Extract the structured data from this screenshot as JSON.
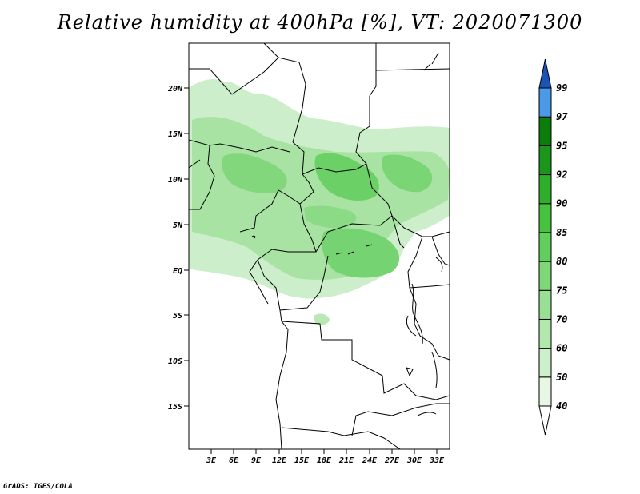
{
  "title": "Relative humidity at 400hPa [%], VT: 2020071300",
  "credit": "GrADS: IGES/COLA",
  "map": {
    "lat_ticks": [
      "20N",
      "15N",
      "10N",
      "5N",
      "EQ",
      "5S",
      "10S",
      "15S"
    ],
    "lon_ticks": [
      "3E",
      "6E",
      "9E",
      "12E",
      "15E",
      "18E",
      "21E",
      "24E",
      "27E",
      "30E",
      "33E"
    ]
  },
  "colorbar": {
    "levels": [
      "40",
      "50",
      "60",
      "70",
      "75",
      "80",
      "85",
      "90",
      "92",
      "95",
      "97",
      "99"
    ],
    "colors": [
      "#ffffff",
      "#e6f8e4",
      "#ccf0c9",
      "#b2e8ae",
      "#98e093",
      "#7ed878",
      "#62ce5c",
      "#46c23f",
      "#2fae2a",
      "#1a961a",
      "#0b7d0b",
      "#4a9ae8",
      "#2a76d2",
      "#1a55b5"
    ]
  }
}
